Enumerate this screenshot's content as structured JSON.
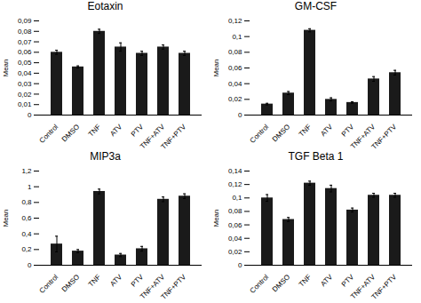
{
  "chart_data": [
    {
      "type": "bar",
      "title": "Eotaxin",
      "ylabel": "Mean",
      "color": "#1a1a1a",
      "categories": [
        "Control",
        "DMSO",
        "TNF",
        "ATV",
        "PTV",
        "TNF+ATV",
        "TNF+PTV"
      ],
      "values": [
        0.06,
        0.046,
        0.08,
        0.065,
        0.059,
        0.065,
        0.059
      ],
      "errors": [
        0.002,
        0.001,
        0.002,
        0.004,
        0.002,
        0.002,
        0.002
      ],
      "ylim": [
        0,
        0.09
      ],
      "yticks": [
        0,
        {
          "value": 0.01,
          "label": "0,01"
        },
        {
          "value": 0.02,
          "label": "0,02"
        },
        {
          "value": 0.03,
          "label": "0,03"
        },
        {
          "value": 0.04,
          "label": "0,04"
        },
        {
          "value": 0.05,
          "label": "0,05"
        },
        {
          "value": 0.06,
          "label": "0,06"
        },
        {
          "value": 0.07,
          "label": "0,07"
        },
        {
          "value": 0.08,
          "label": "0,08"
        },
        {
          "value": 0.09,
          "label": "0,09"
        }
      ]
    },
    {
      "type": "bar",
      "title": "GM-CSF",
      "ylabel": "Mean",
      "color": "#1a1a1a",
      "categories": [
        "Control",
        "DMSO",
        "TNF",
        "ATV",
        "PTV",
        "TNF+ATV",
        "TNF+PTV"
      ],
      "values": [
        0.014,
        0.028,
        0.108,
        0.02,
        0.016,
        0.046,
        0.054
      ],
      "errors": [
        0.001,
        0.002,
        0.002,
        0.002,
        0.001,
        0.003,
        0.003
      ],
      "ylim": [
        0,
        0.12
      ],
      "yticks": [
        0,
        {
          "value": 0.02,
          "label": "0,02"
        },
        {
          "value": 0.04,
          "label": "0,04"
        },
        {
          "value": 0.06,
          "label": "0,06"
        },
        {
          "value": 0.08,
          "label": "0,08"
        },
        {
          "value": 0.1,
          "label": "0,1"
        },
        {
          "value": 0.12,
          "label": "0,12"
        }
      ]
    },
    {
      "type": "bar",
      "title": "MIP3a",
      "ylabel": "Mean",
      "color": "#1a1a1a",
      "categories": [
        "Control",
        "DMSO",
        "TNF",
        "ATV",
        "PTV",
        "TNF+ATV",
        "TNF+PTV"
      ],
      "values": [
        0.27,
        0.18,
        0.94,
        0.13,
        0.21,
        0.84,
        0.88
      ],
      "errors": [
        0.1,
        0.02,
        0.03,
        0.02,
        0.03,
        0.03,
        0.03
      ],
      "ylim": [
        0,
        1.2
      ],
      "yticks": [
        0,
        {
          "value": 0.2,
          "label": "0,2"
        },
        {
          "value": 0.4,
          "label": "0,4"
        },
        {
          "value": 0.6,
          "label": "0,6"
        },
        {
          "value": 0.8,
          "label": "0,8"
        },
        1,
        {
          "value": 1.2,
          "label": "1,2"
        }
      ]
    },
    {
      "type": "bar",
      "title": "TGF Beta 1",
      "ylabel": "Mean",
      "color": "#1a1a1a",
      "categories": [
        "Control",
        "DMSO",
        "TNF",
        "ATV",
        "PTV",
        "TNF+ATV",
        "TNF+PTV"
      ],
      "values": [
        0.1,
        0.068,
        0.122,
        0.114,
        0.082,
        0.104,
        0.104
      ],
      "errors": [
        0.005,
        0.003,
        0.003,
        0.005,
        0.003,
        0.003,
        0.003
      ],
      "ylim": [
        0,
        0.14
      ],
      "yticks": [
        0,
        {
          "value": 0.02,
          "label": "0,02"
        },
        {
          "value": 0.04,
          "label": "0,04"
        },
        {
          "value": 0.06,
          "label": "0,06"
        },
        {
          "value": 0.08,
          "label": "0,08"
        },
        {
          "value": 0.1,
          "label": "0,1"
        },
        {
          "value": 0.12,
          "label": "0,12"
        },
        {
          "value": 0.14,
          "label": "0,14"
        }
      ]
    }
  ]
}
